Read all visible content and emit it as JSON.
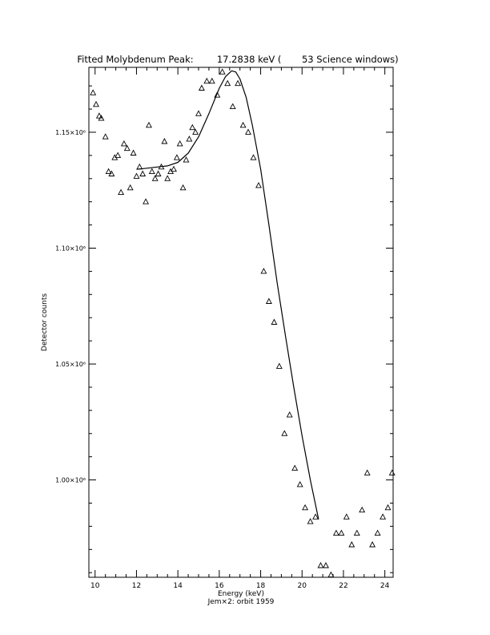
{
  "chart_data": {
    "type": "scatter",
    "title": "Fitted Molybdenum Peak:        17.2838 keV (       53 Science windows)",
    "xlabel": "Energy (keV)",
    "ylabel": "Detector counts",
    "footnote": "Jem×2: orbit 1959",
    "xlim": [
      9.7,
      24.4
    ],
    "ylim": [
      958000,
      1178000
    ],
    "xticks": [
      10,
      12,
      14,
      16,
      18,
      20,
      22,
      24
    ],
    "xtick_labels": [
      "10",
      "12",
      "14",
      "16",
      "18",
      "20",
      "22",
      "24"
    ],
    "yticks": [
      1000000,
      1050000,
      1100000,
      1150000
    ],
    "ytick_labels": [
      "1.00×10⁶",
      "1.05×10⁶",
      "1.10×10⁶",
      "1.15×10⁶"
    ],
    "grid": false,
    "series": [
      {
        "marker": "triangle",
        "x": [
          9.9,
          10.05,
          10.2,
          10.3,
          10.5,
          10.65,
          10.8,
          10.95,
          11.1,
          11.25,
          11.4,
          11.55,
          11.7,
          11.85,
          12.0,
          12.15,
          12.3,
          12.45,
          12.6,
          12.75,
          12.9,
          13.05,
          13.2,
          13.35,
          13.5,
          13.65,
          13.8,
          13.95,
          14.1,
          14.25,
          14.4,
          14.55,
          14.7,
          14.85,
          15.0,
          15.15,
          15.4,
          15.65,
          15.9,
          16.15,
          16.4,
          16.65,
          16.9,
          17.15,
          17.4,
          17.65,
          17.9,
          18.15,
          18.4,
          18.65,
          18.9,
          19.15,
          19.4,
          19.65,
          19.9,
          20.15,
          20.4,
          20.65,
          20.9,
          21.15,
          21.4,
          21.65,
          21.9,
          22.15,
          22.4,
          22.65,
          22.9,
          23.15,
          23.4,
          23.65,
          23.9,
          24.15,
          24.35
        ],
        "y": [
          1167000,
          1162000,
          1157000,
          1156000,
          1148000,
          1133000,
          1132000,
          1139000,
          1140000,
          1124000,
          1145000,
          1143000,
          1126000,
          1141000,
          1131000,
          1135000,
          1132000,
          1120000,
          1153000,
          1133000,
          1130000,
          1132000,
          1135000,
          1146000,
          1130000,
          1133000,
          1134000,
          1139000,
          1145000,
          1126000,
          1138000,
          1147000,
          1152000,
          1150000,
          1158000,
          1169000,
          1172000,
          1172000,
          1166000,
          1176000,
          1171000,
          1161000,
          1171000,
          1153000,
          1150000,
          1139000,
          1127000,
          1090000,
          1077000,
          1068000,
          1049000,
          1020000,
          1028000,
          1005000,
          998000,
          988000,
          982000,
          984000,
          963000,
          963000,
          959000,
          977000,
          977000,
          984000,
          972000,
          977000,
          987000,
          1003000,
          972000,
          977000,
          984000,
          988000,
          1003000
        ]
      },
      {
        "name": "fit",
        "style": "line",
        "x": [
          12.0,
          12.5,
          13.0,
          13.5,
          14.0,
          14.5,
          15.0,
          15.5,
          16.0,
          16.3,
          16.6,
          16.8,
          17.0,
          17.3,
          17.6,
          18.0,
          18.4,
          18.8,
          19.2,
          19.6,
          20.0,
          20.4,
          20.8
        ],
        "y": [
          1134000,
          1134500,
          1135000,
          1135500,
          1137000,
          1141000,
          1148000,
          1158000,
          1169000,
          1174000,
          1176500,
          1176000,
          1173000,
          1165000,
          1153000,
          1134000,
          1110000,
          1085000,
          1062000,
          1040000,
          1019000,
          1000000,
          983000
        ]
      }
    ]
  }
}
